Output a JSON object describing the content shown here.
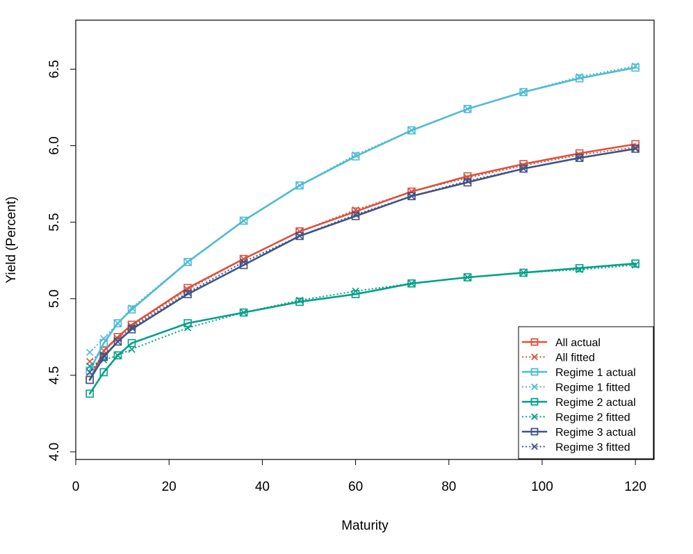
{
  "chart_data": {
    "type": "line",
    "title": "",
    "xlabel": "Maturity",
    "ylabel": "Yield (Percent)",
    "xlim": [
      0,
      124
    ],
    "ylim": [
      3.95,
      6.82
    ],
    "xticks": [
      0,
      20,
      40,
      60,
      80,
      100,
      120
    ],
    "yticks": [
      4.0,
      4.5,
      5.0,
      5.5,
      6.0,
      6.5
    ],
    "xtick_labels": [
      "0",
      "20",
      "40",
      "60",
      "80",
      "100",
      "120"
    ],
    "ytick_labels": [
      "4.0",
      "4.5",
      "5.0",
      "5.5",
      "6.0",
      "6.5"
    ],
    "legend_position": "bottom-right",
    "x": [
      3,
      6,
      9,
      12,
      24,
      36,
      48,
      60,
      72,
      84,
      96,
      108,
      120
    ],
    "series": [
      {
        "name": "All actual",
        "color": "#E0503C",
        "style": "solid",
        "marker": "square",
        "values": [
          4.47,
          4.66,
          4.75,
          4.83,
          5.07,
          5.26,
          5.44,
          5.57,
          5.7,
          5.8,
          5.88,
          5.95,
          6.01
        ]
      },
      {
        "name": "All fitted",
        "color": "#E0503C",
        "style": "dotted",
        "marker": "x",
        "values": [
          4.59,
          4.66,
          4.74,
          4.82,
          5.06,
          5.26,
          5.44,
          5.58,
          5.7,
          5.79,
          5.87,
          5.94,
          5.99
        ]
      },
      {
        "name": "Regime 1 actual",
        "color": "#4DBBD5",
        "style": "solid",
        "marker": "square",
        "values": [
          4.53,
          4.71,
          4.84,
          4.93,
          5.24,
          5.51,
          5.74,
          5.93,
          6.1,
          6.24,
          6.35,
          6.44,
          6.51
        ]
      },
      {
        "name": "Regime 1 fitted",
        "color": "#4DBBD5",
        "style": "dotted",
        "marker": "x",
        "values": [
          4.65,
          4.74,
          4.84,
          4.94,
          5.24,
          5.51,
          5.74,
          5.94,
          6.1,
          6.24,
          6.35,
          6.45,
          6.52
        ]
      },
      {
        "name": "Regime 2 actual",
        "color": "#00A087",
        "style": "solid",
        "marker": "square",
        "values": [
          4.38,
          4.52,
          4.63,
          4.71,
          4.84,
          4.91,
          4.98,
          5.03,
          5.1,
          5.14,
          5.17,
          5.2,
          5.23
        ]
      },
      {
        "name": "Regime 2 fitted",
        "color": "#00A087",
        "style": "dotted",
        "marker": "x",
        "values": [
          4.56,
          4.6,
          4.63,
          4.67,
          4.81,
          4.91,
          4.99,
          5.05,
          5.1,
          5.14,
          5.17,
          5.19,
          5.22
        ]
      },
      {
        "name": "Regime 3 actual",
        "color": "#3C5488",
        "style": "solid",
        "marker": "square",
        "values": [
          4.47,
          4.62,
          4.72,
          4.8,
          5.03,
          5.22,
          5.41,
          5.54,
          5.67,
          5.76,
          5.85,
          5.92,
          5.98
        ]
      },
      {
        "name": "Regime 3 fitted",
        "color": "#3C5488",
        "style": "dotted",
        "marker": "x",
        "values": [
          4.52,
          4.63,
          4.72,
          4.81,
          5.04,
          5.24,
          5.41,
          5.55,
          5.67,
          5.77,
          5.85,
          5.92,
          5.98
        ]
      }
    ]
  }
}
